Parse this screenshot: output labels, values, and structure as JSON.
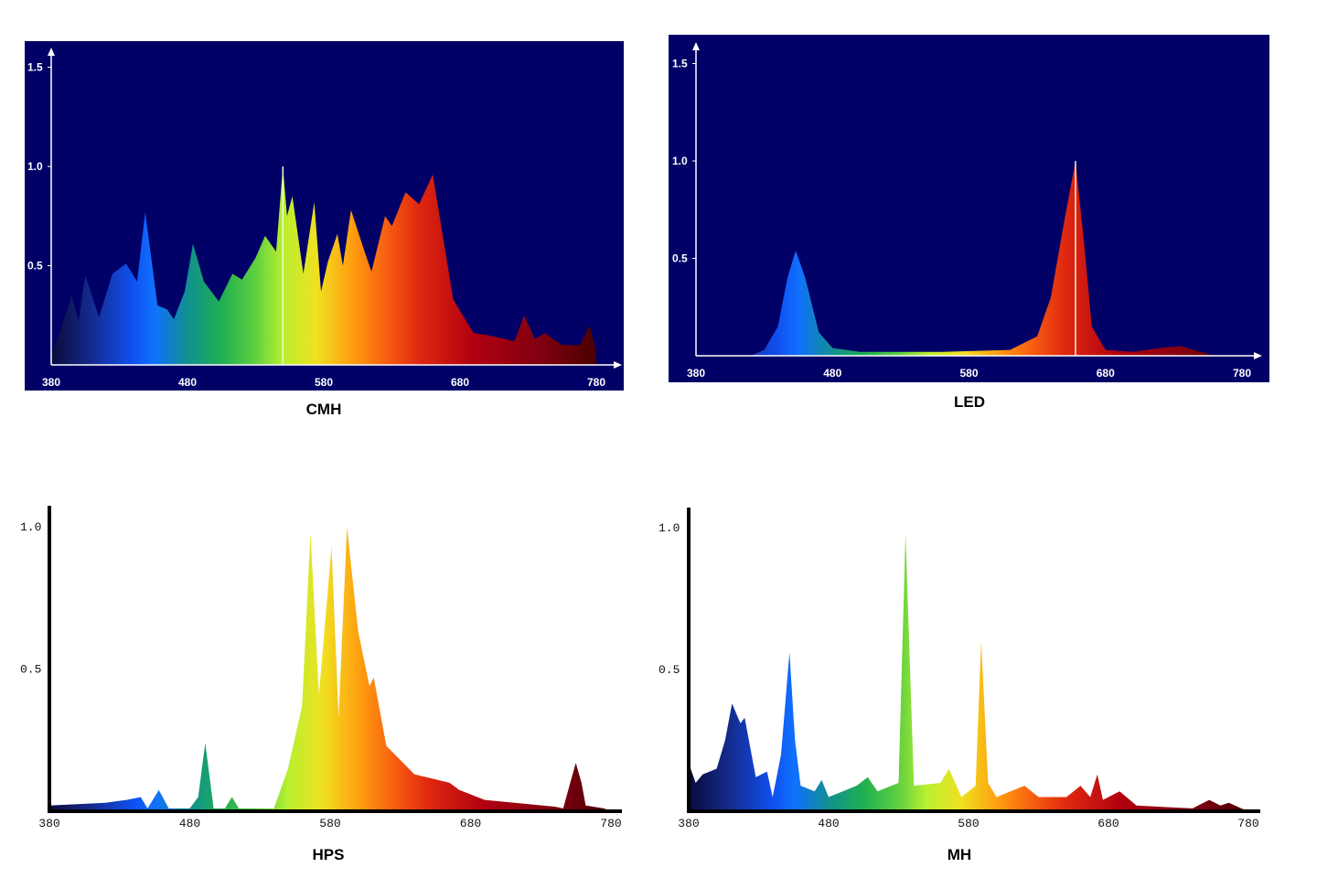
{
  "chart_data": [
    {
      "type": "area",
      "title": "CMH",
      "xlabel": "",
      "ylabel": "",
      "xlim": [
        380,
        780
      ],
      "ylim": [
        0,
        1.5
      ],
      "x_ticks": [
        "380",
        "480",
        "580",
        "680",
        "780"
      ],
      "y_ticks": [
        "0.5",
        "1.0",
        "1.5"
      ],
      "background": "#000066",
      "highlight_nm": 550,
      "x": [
        380,
        388,
        395,
        400,
        405,
        415,
        425,
        435,
        443,
        449,
        458,
        465,
        470,
        478,
        484,
        492,
        503,
        513,
        520,
        530,
        537,
        545,
        550,
        553,
        557,
        565,
        573,
        578,
        583,
        590,
        594,
        600,
        610,
        615,
        625,
        630,
        640,
        650,
        660,
        670,
        675,
        690,
        700,
        720,
        727,
        735,
        742,
        755,
        768,
        775,
        780
      ],
      "y": [
        0.05,
        0.2,
        0.35,
        0.22,
        0.45,
        0.24,
        0.46,
        0.51,
        0.42,
        0.77,
        0.3,
        0.28,
        0.23,
        0.37,
        0.61,
        0.42,
        0.32,
        0.46,
        0.43,
        0.54,
        0.65,
        0.57,
        1.0,
        0.75,
        0.85,
        0.46,
        0.82,
        0.37,
        0.52,
        0.66,
        0.5,
        0.78,
        0.57,
        0.47,
        0.75,
        0.7,
        0.87,
        0.81,
        0.96,
        0.54,
        0.33,
        0.16,
        0.15,
        0.12,
        0.25,
        0.13,
        0.16,
        0.1,
        0.1,
        0.2,
        0.07
      ]
    },
    {
      "type": "area",
      "title": "LED",
      "xlabel": "",
      "ylabel": "",
      "xlim": [
        380,
        780
      ],
      "ylim": [
        0,
        1.5
      ],
      "x_ticks": [
        "380",
        "480",
        "580",
        "680",
        "780"
      ],
      "y_ticks": [
        "0.5",
        "1.0",
        "1.5"
      ],
      "background": "#000066",
      "highlight_nm": 658,
      "x": [
        420,
        430,
        440,
        447,
        453,
        460,
        470,
        480,
        500,
        560,
        610,
        630,
        640,
        650,
        658,
        664,
        670,
        680,
        700,
        720,
        735,
        750,
        760
      ],
      "y": [
        0,
        0.03,
        0.15,
        0.4,
        0.54,
        0.4,
        0.12,
        0.04,
        0.02,
        0.02,
        0.03,
        0.1,
        0.3,
        0.7,
        1.0,
        0.6,
        0.15,
        0.03,
        0.02,
        0.04,
        0.05,
        0.02,
        0
      ]
    },
    {
      "type": "area",
      "title": "HPS",
      "xlabel": "",
      "ylabel": "",
      "xlim": [
        380,
        780
      ],
      "ylim": [
        0,
        1.0
      ],
      "x_ticks": [
        "380",
        "480",
        "580",
        "680",
        "780"
      ],
      "y_ticks": [
        "0.5",
        "1.0"
      ],
      "background": "#ffffff",
      "x": [
        380,
        420,
        435,
        445,
        450,
        458,
        465,
        480,
        486,
        491,
        497,
        505,
        510,
        515,
        540,
        550,
        560,
        566,
        572,
        581,
        586,
        592,
        600,
        608,
        611,
        620,
        640,
        665,
        672,
        690,
        740,
        746,
        751,
        755,
        759,
        762,
        775,
        780
      ],
      "y": [
        0.02,
        0.03,
        0.04,
        0.05,
        0.01,
        0.075,
        0.01,
        0.01,
        0.05,
        0.24,
        0.01,
        0.01,
        0.05,
        0.01,
        0.01,
        0.15,
        0.37,
        0.98,
        0.41,
        0.93,
        0.33,
        1.0,
        0.63,
        0.44,
        0.47,
        0.23,
        0.13,
        0.1,
        0.075,
        0.04,
        0.016,
        0.01,
        0.1,
        0.17,
        0.1,
        0.02,
        0.01,
        0
      ]
    },
    {
      "type": "area",
      "title": "MH",
      "xlabel": "",
      "ylabel": "",
      "xlim": [
        380,
        780
      ],
      "ylim": [
        0,
        1.0
      ],
      "x_ticks": [
        "380",
        "480",
        "580",
        "680",
        "780"
      ],
      "y_ticks": [
        "0.5",
        "1.0"
      ],
      "background": "#ffffff",
      "x": [
        380,
        385,
        390,
        400,
        406,
        411,
        417,
        420,
        428,
        436,
        440,
        446,
        452,
        456,
        460,
        470,
        475,
        480,
        500,
        508,
        515,
        530,
        535,
        541,
        560,
        566,
        575,
        585,
        589,
        594,
        600,
        610,
        620,
        630,
        650,
        660,
        667,
        672,
        676,
        688,
        700,
        740,
        752,
        760,
        766,
        775,
        780
      ],
      "y": [
        0.17,
        0.1,
        0.13,
        0.15,
        0.25,
        0.38,
        0.31,
        0.33,
        0.12,
        0.14,
        0.05,
        0.2,
        0.56,
        0.25,
        0.09,
        0.07,
        0.11,
        0.05,
        0.09,
        0.12,
        0.07,
        0.1,
        0.98,
        0.09,
        0.1,
        0.15,
        0.05,
        0.09,
        0.6,
        0.1,
        0.05,
        0.07,
        0.09,
        0.05,
        0.05,
        0.09,
        0.05,
        0.13,
        0.04,
        0.07,
        0.02,
        0.01,
        0.04,
        0.02,
        0.03,
        0.01,
        0
      ]
    }
  ]
}
